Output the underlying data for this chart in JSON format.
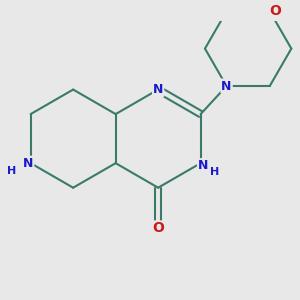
{
  "bg_color": "#e8e8e8",
  "bond_color": "#3a7a6a",
  "bond_width": 1.5,
  "atom_colors": {
    "N": "#1a1acc",
    "O": "#cc1a1a"
  },
  "font_size_N": 9,
  "font_size_NH": 9,
  "font_size_O": 10,
  "fig_size": [
    3.0,
    3.0
  ],
  "dpi": 100,
  "xlim": [
    -2.8,
    3.2
  ],
  "ylim": [
    -2.8,
    2.5
  ]
}
